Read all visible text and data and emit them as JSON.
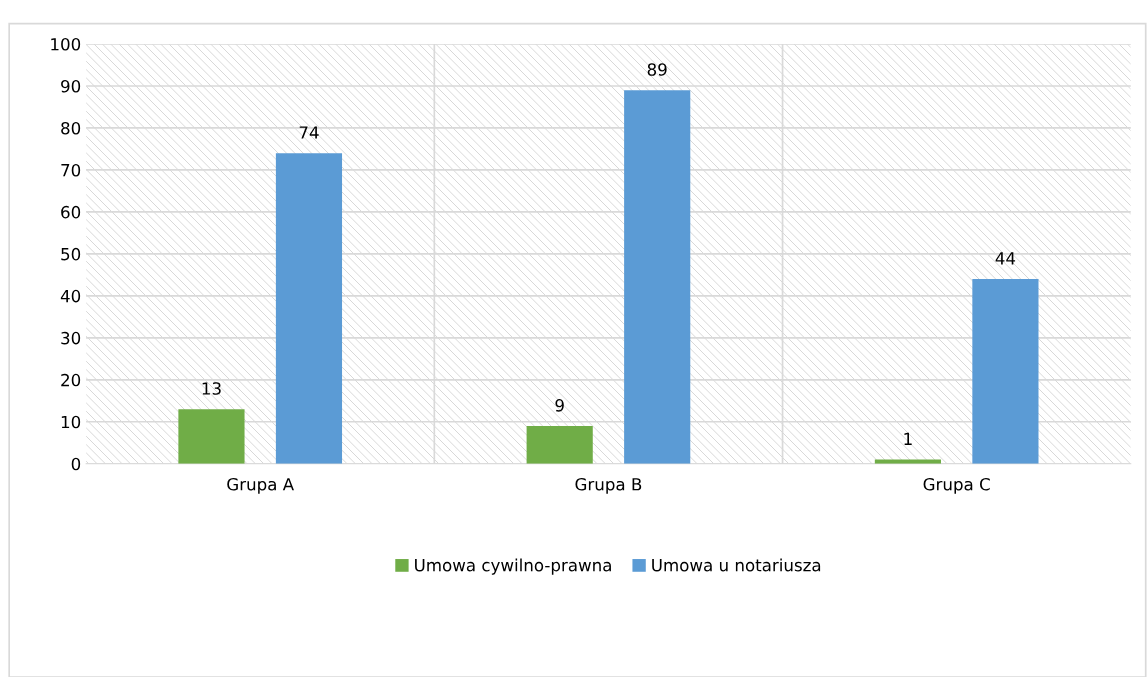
{
  "chart_data": {
    "type": "bar",
    "categories": [
      "Grupa A",
      "Grupa B",
      "Grupa C"
    ],
    "series": [
      {
        "name": "Umowa cywilno-prawna",
        "color": "#70ad47",
        "values": [
          13,
          9,
          1
        ]
      },
      {
        "name": "Umowa u notariusza",
        "color": "#5b9bd5",
        "values": [
          74,
          89,
          44
        ]
      }
    ],
    "ylim": [
      0,
      100
    ],
    "yticks": [
      0,
      10,
      20,
      30,
      40,
      50,
      60,
      70,
      80,
      90,
      100
    ],
    "grid": true,
    "legend": "bottom",
    "data_labels": true
  }
}
